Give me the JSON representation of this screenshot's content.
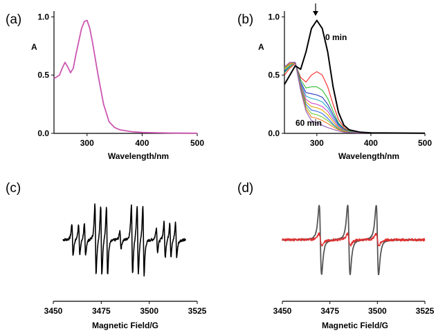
{
  "colors": {
    "panel_a_line": "#cc55b0",
    "panel_b_0min": "#000000",
    "panel_b_series": [
      "#ff2020",
      "#33bb33",
      "#2233bb",
      "#22aacc",
      "#cc44cc",
      "#ddaa00",
      "#3366ee",
      "#66cc33",
      "#ee7722",
      "#8855aa"
    ],
    "panel_c_line": "#000000",
    "panel_d_gray": "#555555",
    "panel_d_red": "#e03030"
  },
  "chart_data": [
    {
      "panel": "(a)",
      "type": "line",
      "xlabel": "Wavelength/nm",
      "ylabel": "A",
      "xlim": [
        240,
        500
      ],
      "ylim": [
        0,
        1.05
      ],
      "xticks": [
        300,
        400,
        500
      ],
      "xtick_labels": [
        "300",
        "400",
        "500"
      ],
      "yticks": [
        0.0,
        0.5,
        1.0
      ],
      "ytick_labels": [
        "0.0",
        "0.5",
        "1.0"
      ],
      "series": [
        {
          "x": [
            240,
            250,
            255,
            260,
            265,
            270,
            275,
            280,
            290,
            295,
            300,
            305,
            310,
            320,
            330,
            340,
            350,
            360,
            380,
            400,
            450,
            500
          ],
          "y": [
            0.47,
            0.5,
            0.56,
            0.61,
            0.57,
            0.52,
            0.56,
            0.68,
            0.9,
            0.96,
            0.97,
            0.9,
            0.78,
            0.5,
            0.25,
            0.1,
            0.05,
            0.03,
            0.015,
            0.008,
            0.003,
            0.001
          ]
        }
      ]
    },
    {
      "panel": "(b)",
      "type": "line",
      "xlabel": "Wavelength/nm",
      "ylabel": "A",
      "xlim": [
        240,
        500
      ],
      "ylim": [
        0,
        1.05
      ],
      "xticks": [
        300,
        400,
        500
      ],
      "xtick_labels": [
        "300",
        "400",
        "500"
      ],
      "yticks": [
        0.0,
        0.5,
        1.0
      ],
      "ytick_labels": [
        "0.0",
        "0.5",
        "1.0"
      ],
      "annotations": [
        {
          "text": "0 min",
          "x": 320,
          "y": 0.9
        },
        {
          "text": "60 min",
          "x": 262,
          "y": 0.1
        }
      ],
      "arrow": {
        "x": 300,
        "y_from": 1.07,
        "y_to": 0.98
      },
      "series": [
        {
          "x": [
            240,
            250,
            260,
            270,
            280,
            290,
            300,
            310,
            320,
            330,
            340,
            350,
            360,
            380,
            400,
            500
          ],
          "y": [
            0.42,
            0.5,
            0.58,
            0.55,
            0.7,
            0.9,
            0.97,
            0.9,
            0.7,
            0.4,
            0.18,
            0.07,
            0.03,
            0.01,
            0.005,
            0.002
          ]
        },
        {
          "x": [
            240,
            250,
            260,
            270,
            280,
            290,
            300,
            310,
            320,
            330,
            340,
            350,
            360,
            380,
            400,
            500
          ],
          "y": [
            0.5,
            0.56,
            0.6,
            0.48,
            0.44,
            0.5,
            0.53,
            0.5,
            0.4,
            0.25,
            0.12,
            0.05,
            0.02,
            0.01,
            0.005,
            0.002
          ]
        },
        {
          "x": [
            240,
            250,
            260,
            270,
            280,
            290,
            300,
            310,
            320,
            330,
            340,
            350,
            360,
            380,
            400,
            500
          ],
          "y": [
            0.52,
            0.57,
            0.61,
            0.46,
            0.39,
            0.4,
            0.4,
            0.37,
            0.3,
            0.19,
            0.09,
            0.04,
            0.02,
            0.008,
            0.004,
            0.002
          ]
        },
        {
          "x": [
            240,
            250,
            260,
            270,
            280,
            290,
            300,
            310,
            320,
            330,
            340,
            350,
            360,
            380,
            400,
            500
          ],
          "y": [
            0.53,
            0.58,
            0.61,
            0.44,
            0.35,
            0.34,
            0.33,
            0.31,
            0.25,
            0.16,
            0.08,
            0.035,
            0.015,
            0.007,
            0.004,
            0.002
          ]
        },
        {
          "x": [
            240,
            250,
            260,
            270,
            280,
            290,
            300,
            310,
            320,
            330,
            340,
            350,
            360,
            380,
            400,
            500
          ],
          "y": [
            0.54,
            0.58,
            0.61,
            0.43,
            0.32,
            0.3,
            0.29,
            0.27,
            0.22,
            0.14,
            0.07,
            0.03,
            0.014,
            0.006,
            0.003,
            0.002
          ]
        },
        {
          "x": [
            240,
            250,
            260,
            270,
            280,
            290,
            300,
            310,
            320,
            330,
            340,
            350,
            360,
            380,
            400,
            500
          ],
          "y": [
            0.55,
            0.59,
            0.61,
            0.42,
            0.29,
            0.26,
            0.25,
            0.23,
            0.19,
            0.12,
            0.06,
            0.028,
            0.013,
            0.006,
            0.003,
            0.002
          ]
        },
        {
          "x": [
            240,
            250,
            260,
            270,
            280,
            290,
            300,
            310,
            320,
            330,
            340,
            350,
            360,
            380,
            400,
            500
          ],
          "y": [
            0.55,
            0.59,
            0.61,
            0.41,
            0.27,
            0.23,
            0.22,
            0.2,
            0.16,
            0.1,
            0.05,
            0.025,
            0.012,
            0.005,
            0.003,
            0.002
          ]
        },
        {
          "x": [
            240,
            250,
            260,
            270,
            280,
            290,
            300,
            310,
            320,
            330,
            340,
            350,
            360,
            380,
            400,
            500
          ],
          "y": [
            0.56,
            0.6,
            0.61,
            0.4,
            0.25,
            0.2,
            0.19,
            0.17,
            0.13,
            0.08,
            0.04,
            0.02,
            0.01,
            0.005,
            0.003,
            0.002
          ]
        },
        {
          "x": [
            240,
            250,
            260,
            270,
            280,
            290,
            300,
            310,
            320,
            330,
            340,
            350,
            360,
            380,
            400,
            500
          ],
          "y": [
            0.56,
            0.6,
            0.61,
            0.39,
            0.23,
            0.17,
            0.16,
            0.14,
            0.11,
            0.07,
            0.035,
            0.018,
            0.009,
            0.005,
            0.003,
            0.002
          ]
        },
        {
          "x": [
            240,
            250,
            260,
            270,
            280,
            290,
            300,
            310,
            320,
            330,
            340,
            350,
            360,
            380,
            400,
            500
          ],
          "y": [
            0.57,
            0.6,
            0.61,
            0.38,
            0.21,
            0.14,
            0.13,
            0.11,
            0.085,
            0.055,
            0.03,
            0.015,
            0.008,
            0.004,
            0.003,
            0.002
          ]
        },
        {
          "x": [
            240,
            250,
            260,
            270,
            280,
            290,
            300,
            310,
            320,
            330,
            340,
            350,
            360,
            380,
            400,
            500
          ],
          "y": [
            0.57,
            0.61,
            0.61,
            0.37,
            0.19,
            0.11,
            0.09,
            0.07,
            0.05,
            0.035,
            0.02,
            0.01,
            0.006,
            0.004,
            0.003,
            0.002
          ]
        }
      ]
    },
    {
      "panel": "(c)",
      "type": "line",
      "xlabel": "Magnetic Field/G",
      "xlim": [
        3450,
        3525
      ],
      "xticks": [
        3450,
        3475,
        3500,
        3525
      ],
      "xtick_labels": [
        "3450",
        "3475",
        "3500",
        "3525"
      ],
      "ylim": [
        -1.15,
        1.15
      ],
      "lines": [
        {
          "x": 3460,
          "a": 0.45
        },
        {
          "x": 3463.5,
          "a": 0.45
        },
        {
          "x": 3466.5,
          "a": 0.45
        },
        {
          "x": 3472,
          "a": 1.0
        },
        {
          "x": 3475,
          "a": 1.0
        },
        {
          "x": 3478,
          "a": 1.0
        },
        {
          "x": 3485,
          "a": 0.25
        },
        {
          "x": 3491,
          "a": 1.0
        },
        {
          "x": 3494,
          "a": 1.0
        },
        {
          "x": 3497,
          "a": 1.0
        },
        {
          "x": 3504,
          "a": 0.35
        },
        {
          "x": 3508,
          "a": 0.5
        },
        {
          "x": 3511,
          "a": 0.5
        },
        {
          "x": 3514,
          "a": 0.5
        }
      ]
    },
    {
      "panel": "(d)",
      "type": "line",
      "xlabel": "Magnetic Field/G",
      "xlim": [
        3450,
        3525
      ],
      "xticks": [
        3450,
        3475,
        3500,
        3525
      ],
      "xtick_labels": [
        "3450",
        "3475",
        "3500",
        "3525"
      ],
      "ylim": [
        -1.15,
        1.15
      ],
      "series": [
        {
          "name": "",
          "lines": [
            {
              "x": 3470,
              "a": 1.0
            },
            {
              "x": 3485,
              "a": 1.0
            },
            {
              "x": 3500,
              "a": 1.0
            }
          ]
        },
        {
          "name": "",
          "lines": [
            {
              "x": 3470,
              "a": 0.17
            },
            {
              "x": 3485,
              "a": 0.17
            },
            {
              "x": 3500,
              "a": 0.17
            }
          ]
        }
      ]
    }
  ]
}
